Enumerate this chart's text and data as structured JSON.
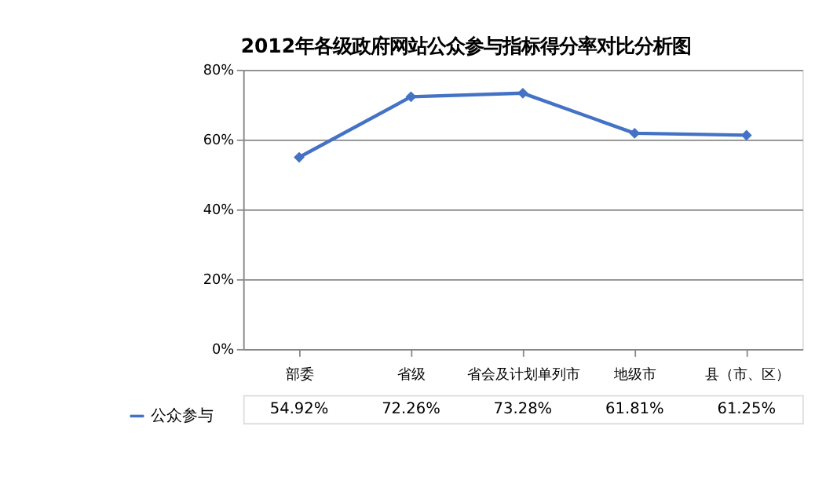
{
  "chart_data": {
    "type": "line",
    "title": "2012年各级政府网站公众参与指标得分率对比分析图",
    "categories": [
      "部委",
      "省级",
      "省会及计划单列市",
      "地级市",
      "县（市、区）"
    ],
    "series": [
      {
        "name": "公众参与",
        "color": "#4472c4",
        "values": [
          54.92,
          72.26,
          73.28,
          61.81,
          61.25
        ],
        "value_labels": [
          "54.92%",
          "72.26%",
          "73.28%",
          "61.81%",
          "61.25%"
        ]
      }
    ],
    "ylim": [
      0,
      80
    ],
    "yticks": [
      {
        "value": 0,
        "label": "0%"
      },
      {
        "value": 20,
        "label": "20%"
      },
      {
        "value": 40,
        "label": "40%"
      },
      {
        "value": 60,
        "label": "60%"
      },
      {
        "value": 80,
        "label": "80%"
      }
    ],
    "grid": "y",
    "marker": "diamond",
    "legend": "bottom left"
  }
}
